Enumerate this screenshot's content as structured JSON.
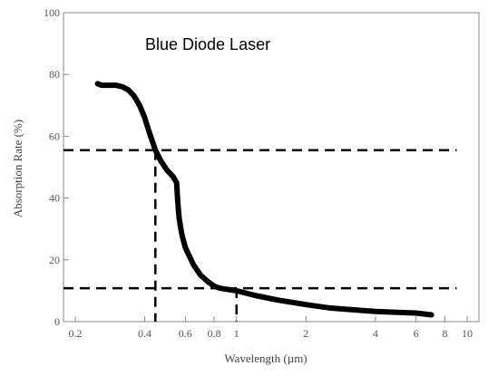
{
  "chart_data": {
    "type": "line",
    "title": "Blue Diode Laser",
    "xlabel": "Wavelength (µm)",
    "ylabel": "Absorption Rate (%)",
    "x_scale": "log",
    "xlim": [
      0.2,
      10
    ],
    "ylim": [
      0,
      100
    ],
    "x_ticks": [
      0.2,
      0.4,
      0.6,
      0.8,
      1,
      2,
      4,
      6,
      8,
      10
    ],
    "x_tick_labels": [
      "0.2",
      "0.4",
      "0.6",
      "0.8",
      "1",
      "2",
      "4",
      "6",
      "8",
      "10"
    ],
    "y_ticks": [
      0,
      20,
      40,
      60,
      80,
      100
    ],
    "y_tick_labels": [
      "0",
      "20",
      "40",
      "60",
      "80",
      "100"
    ],
    "grid": false,
    "series": [
      {
        "x": [
          0.25,
          0.26,
          0.28,
          0.3,
          0.32,
          0.34,
          0.36,
          0.38,
          0.4,
          0.42,
          0.445,
          0.47,
          0.5,
          0.53,
          0.55,
          0.555,
          0.56,
          0.565,
          0.58,
          0.6,
          0.65,
          0.7,
          0.75,
          0.8,
          0.85,
          0.9,
          1.0,
          1.2,
          1.5,
          2,
          2.5,
          3,
          4,
          5,
          6,
          7
        ],
        "y": [
          77,
          76.5,
          76.5,
          76.5,
          76,
          75,
          73,
          70,
          66,
          61,
          55.5,
          52,
          49,
          47,
          45,
          40,
          36,
          33,
          28,
          24,
          18.5,
          15,
          13,
          11.5,
          10.8,
          10.5,
          10,
          8.5,
          7,
          5.5,
          4.5,
          4,
          3.3,
          3,
          2.8,
          2.2
        ]
      }
    ],
    "reference_lines": [
      {
        "orientation": "horizontal",
        "y": 55.5,
        "x_to": 9
      },
      {
        "orientation": "horizontal",
        "y": 10.8,
        "x_to": 9
      },
      {
        "orientation": "vertical",
        "x": 0.445,
        "y_to": 55.5
      },
      {
        "orientation": "vertical",
        "x": 1.0,
        "y_to": 10.8
      }
    ],
    "colors": {
      "curve": "#000000",
      "reference": "#000000",
      "axes": "#888888",
      "ticks_text": "#555555"
    }
  }
}
